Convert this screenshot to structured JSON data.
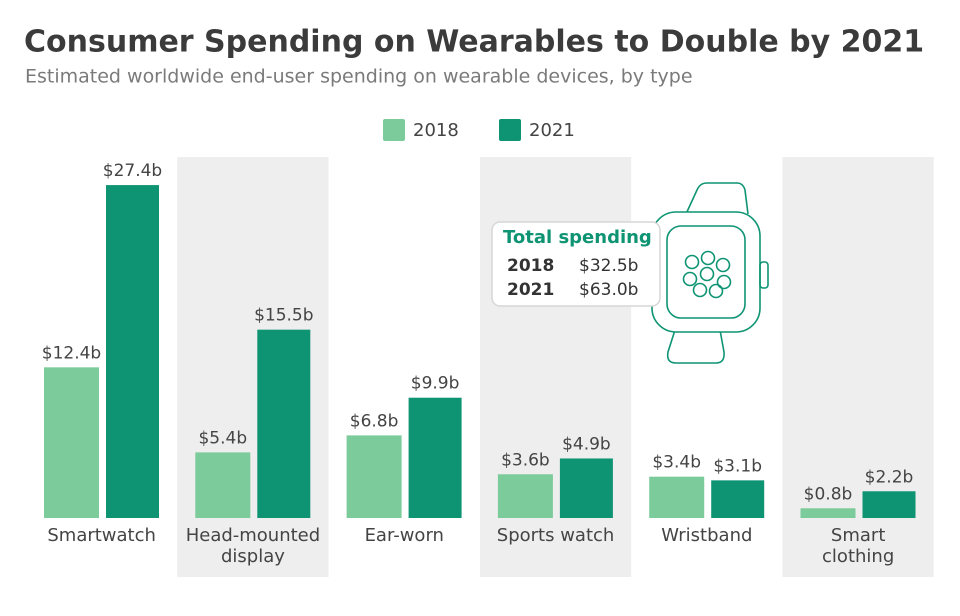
{
  "chart_data": {
    "type": "bar",
    "title": "Consumer Spending on Wearables to Double by 2021",
    "subtitle": "Estimated worldwide end-user spending on wearable devices, by type",
    "categories": [
      "Smartwatch",
      "Head-mounted\ndisplay",
      "Ear-worn",
      "Sports watch",
      "Wristband",
      "Smart\nclothing"
    ],
    "series": [
      {
        "name": "2018",
        "color": "#7ccb9b",
        "values": [
          12.4,
          5.4,
          6.8,
          3.6,
          3.4,
          0.8
        ],
        "value_labels": [
          "$12.4b",
          "$5.4b",
          "$6.8b",
          "$3.6b",
          "$3.4b",
          "$0.8b"
        ]
      },
      {
        "name": "2021",
        "color": "#0e9473",
        "values": [
          27.4,
          15.5,
          9.9,
          4.9,
          3.1,
          2.2
        ],
        "value_labels": [
          "$27.4b",
          "$15.5b",
          "$9.9b",
          "$4.9b",
          "$3.1b",
          "$2.2b"
        ]
      }
    ],
    "annotation": {
      "title": "Total spending",
      "rows": [
        [
          "2018",
          "$32.5b"
        ],
        [
          "2021",
          "$63.0b"
        ]
      ]
    }
  }
}
